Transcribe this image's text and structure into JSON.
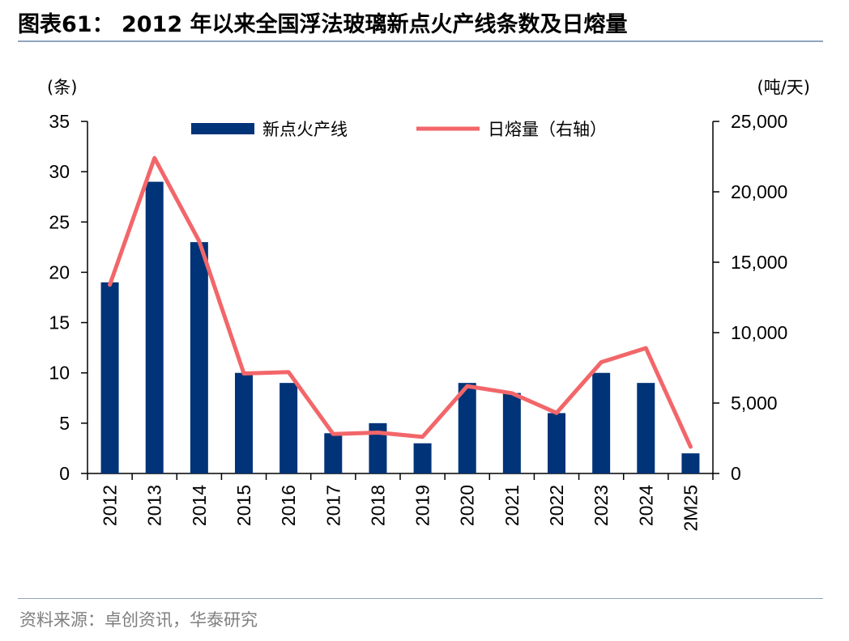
{
  "figure": {
    "title": "图表61： 2012 年以来全国浮法玻璃新点火产线条数及日熔量",
    "source": "资料来源：卓创资讯，华泰研究"
  },
  "chart_data": {
    "type": "bar+line",
    "categories": [
      "2012",
      "2013",
      "2014",
      "2015",
      "2016",
      "2017",
      "2018",
      "2019",
      "2020",
      "2021",
      "2022",
      "2023",
      "2024",
      "2M25"
    ],
    "series": [
      {
        "name": "新点火产线",
        "type": "bar",
        "axis": "left",
        "color": "#003378",
        "values": [
          19,
          29,
          23,
          10,
          9,
          4,
          5,
          3,
          9,
          8,
          6,
          10,
          9,
          2
        ]
      },
      {
        "name": "日熔量（右轴）",
        "type": "line",
        "axis": "right",
        "color": "#f2666a",
        "values": [
          13400,
          22400,
          16500,
          7100,
          7200,
          2800,
          2900,
          2600,
          6200,
          5700,
          4300,
          7900,
          8900,
          1900
        ]
      }
    ],
    "y_left": {
      "unit": "(条)",
      "ylim": [
        0,
        35
      ],
      "ticks": [
        "0",
        "5",
        "10",
        "15",
        "20",
        "25",
        "30",
        "35"
      ]
    },
    "y_right": {
      "unit": "(吨/天)",
      "ylim": [
        0,
        25000
      ],
      "ticks": [
        "0",
        "5,000",
        "10,000",
        "15,000",
        "20,000",
        "25,000"
      ]
    },
    "legend_placement": "top-center",
    "grid": false
  }
}
